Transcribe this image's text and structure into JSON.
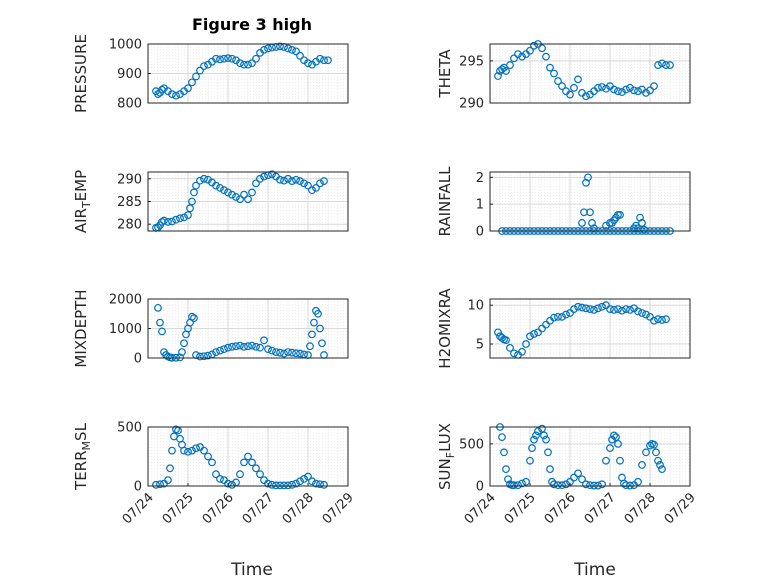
{
  "figure": {
    "title": "Figure 3 high",
    "marker_color": "#0072BD",
    "grid_color": "#d9d9d9",
    "axis_color": "#262626",
    "xlabel": "Time"
  },
  "chart_data": [
    {
      "type": "scatter",
      "ylabel": "PRESSURE",
      "xlim": [
        0,
        5
      ],
      "ylim": [
        800,
        1000
      ],
      "yticks": [
        800,
        900,
        1000
      ],
      "xticks": [],
      "xticklabels": [],
      "grid": true,
      "series": [
        {
          "x": [
            0.2,
            0.25,
            0.3,
            0.35,
            0.4,
            0.5,
            0.6,
            0.7,
            0.8,
            0.9,
            1.0,
            1.1,
            1.2,
            1.3,
            1.4,
            1.5,
            1.6,
            1.7,
            1.8,
            1.9,
            2.0,
            2.1,
            2.2,
            2.3,
            2.4,
            2.5,
            2.6,
            2.7,
            2.8,
            2.9,
            3.0,
            3.1,
            3.2,
            3.3,
            3.4,
            3.5,
            3.6,
            3.7,
            3.8,
            3.9,
            4.0,
            4.1,
            4.2,
            4.3,
            4.4,
            4.5
          ],
          "y": [
            840,
            830,
            835,
            845,
            850,
            840,
            830,
            825,
            830,
            840,
            850,
            870,
            890,
            910,
            925,
            930,
            940,
            950,
            948,
            950,
            952,
            950,
            945,
            935,
            930,
            930,
            935,
            950,
            970,
            980,
            985,
            988,
            990,
            992,
            990,
            985,
            980,
            975,
            960,
            945,
            935,
            930,
            940,
            950,
            945,
            945
          ]
        }
      ]
    },
    {
      "type": "scatter",
      "ylabel": "THETA",
      "xlim": [
        0,
        5
      ],
      "ylim": [
        290,
        297
      ],
      "yticks": [
        290,
        295
      ],
      "xticks": [],
      "xticklabels": [],
      "grid": true,
      "series": [
        {
          "x": [
            0.2,
            0.25,
            0.3,
            0.35,
            0.4,
            0.5,
            0.6,
            0.7,
            0.8,
            0.9,
            1.0,
            1.1,
            1.2,
            1.3,
            1.4,
            1.5,
            1.6,
            1.7,
            1.8,
            1.9,
            2.0,
            2.1,
            2.2,
            2.3,
            2.4,
            2.5,
            2.6,
            2.7,
            2.8,
            2.9,
            3.0,
            3.1,
            3.2,
            3.3,
            3.4,
            3.5,
            3.6,
            3.7,
            3.8,
            3.9,
            4.0,
            4.1,
            4.2,
            4.3,
            4.4,
            4.5
          ],
          "y": [
            293.2,
            293.8,
            294.0,
            294.2,
            293.8,
            294.5,
            295.3,
            295.8,
            295.5,
            295.8,
            296.2,
            296.8,
            297.0,
            296.5,
            295.5,
            294.2,
            293.5,
            292.6,
            292.0,
            291.4,
            291.0,
            291.8,
            292.8,
            291.2,
            290.8,
            291.0,
            291.4,
            291.8,
            291.9,
            291.7,
            292.0,
            291.6,
            291.4,
            291.3,
            291.6,
            291.8,
            291.5,
            291.4,
            291.6,
            291.2,
            291.5,
            292.0,
            294.5,
            294.7,
            294.5,
            294.5
          ]
        }
      ]
    },
    {
      "type": "scatter",
      "ylabel": "AIR_TEMP",
      "xlim": [
        0,
        5
      ],
      "ylim": [
        278.5,
        291.5
      ],
      "yticks": [
        280,
        285,
        290
      ],
      "xticks": [],
      "xticklabels": [],
      "grid": true,
      "series": [
        {
          "x": [
            0.2,
            0.25,
            0.3,
            0.35,
            0.4,
            0.5,
            0.6,
            0.7,
            0.8,
            0.9,
            1.0,
            1.05,
            1.1,
            1.15,
            1.2,
            1.3,
            1.4,
            1.5,
            1.6,
            1.7,
            1.8,
            1.9,
            2.0,
            2.1,
            2.2,
            2.3,
            2.4,
            2.5,
            2.6,
            2.7,
            2.8,
            2.9,
            3.0,
            3.1,
            3.2,
            3.3,
            3.4,
            3.5,
            3.6,
            3.7,
            3.8,
            3.9,
            4.0,
            4.1,
            4.2,
            4.3,
            4.4
          ],
          "y": [
            279.2,
            279.3,
            279.8,
            280.5,
            280.8,
            280.5,
            280.6,
            281.0,
            281.3,
            281.5,
            282.0,
            283.5,
            285.0,
            287.0,
            288.5,
            289.6,
            290.0,
            289.8,
            289.2,
            288.5,
            288.0,
            287.5,
            287.0,
            286.5,
            286.0,
            285.5,
            286.5,
            285.5,
            287.0,
            289.0,
            290.0,
            290.5,
            290.8,
            291.0,
            290.5,
            289.8,
            289.6,
            290.0,
            289.5,
            289.8,
            289.5,
            289.0,
            288.5,
            287.5,
            288.0,
            289.0,
            289.5
          ]
        }
      ]
    },
    {
      "type": "scatter",
      "ylabel": "RAINFALL",
      "xlim": [
        0,
        5
      ],
      "ylim": [
        0,
        2.2
      ],
      "yticks": [
        0,
        1,
        2
      ],
      "xticks": [],
      "xticklabels": [],
      "grid": true,
      "series": [
        {
          "x": [
            0.3,
            0.4,
            0.5,
            0.6,
            0.7,
            0.8,
            0.9,
            1.0,
            1.1,
            1.2,
            1.3,
            1.4,
            1.5,
            1.6,
            1.7,
            1.8,
            1.9,
            2.0,
            2.1,
            2.2,
            2.3,
            2.4,
            2.5,
            2.6,
            2.7,
            2.8,
            2.9,
            3.0,
            3.1,
            3.2,
            3.3,
            3.4,
            3.5,
            3.6,
            3.7,
            3.8,
            3.9,
            4.0,
            4.1,
            4.2,
            4.3,
            4.4,
            4.5,
            2.3,
            2.35,
            2.4,
            2.45,
            2.5,
            2.55,
            2.6,
            2.9,
            3.0,
            3.05,
            3.1,
            3.15,
            3.2,
            3.25,
            3.6,
            3.65,
            3.7,
            3.75,
            3.8,
            3.85
          ],
          "y": [
            0,
            0,
            0,
            0,
            0,
            0,
            0,
            0,
            0,
            0,
            0,
            0,
            0,
            0,
            0,
            0,
            0,
            0,
            0,
            0,
            0,
            0,
            0,
            0,
            0,
            0,
            0,
            0,
            0,
            0,
            0,
            0,
            0,
            0,
            0,
            0,
            0,
            0,
            0,
            0,
            0,
            0,
            0,
            0.3,
            0.7,
            1.8,
            2.0,
            0.7,
            0.3,
            0.1,
            0.2,
            0.3,
            0.3,
            0.4,
            0.5,
            0.6,
            0.6,
            0.1,
            0.2,
            0.1,
            0.5,
            0.3,
            0.05
          ]
        }
      ]
    },
    {
      "type": "scatter",
      "ylabel": "MIXDEPTH",
      "xlim": [
        0,
        5
      ],
      "ylim": [
        0,
        2000
      ],
      "yticks": [
        0,
        1000,
        2000
      ],
      "xticks": [],
      "xticklabels": [],
      "grid": true,
      "series": [
        {
          "x": [
            0.25,
            0.3,
            0.35,
            0.4,
            0.45,
            0.5,
            0.55,
            0.6,
            0.7,
            0.8,
            0.85,
            0.9,
            0.95,
            1.0,
            1.05,
            1.1,
            1.15,
            1.2,
            1.3,
            1.4,
            1.5,
            1.6,
            1.7,
            1.8,
            1.9,
            2.0,
            2.1,
            2.2,
            2.3,
            2.4,
            2.5,
            2.6,
            2.7,
            2.8,
            2.9,
            3.0,
            3.1,
            3.2,
            3.3,
            3.4,
            3.5,
            3.6,
            3.7,
            3.8,
            3.9,
            4.0,
            4.05,
            4.1,
            4.15,
            4.2,
            4.25,
            4.3,
            4.35,
            4.4
          ],
          "y": [
            1700,
            1200,
            900,
            200,
            100,
            50,
            20,
            10,
            10,
            20,
            200,
            500,
            800,
            1000,
            1200,
            1400,
            1350,
            100,
            50,
            60,
            80,
            120,
            200,
            250,
            300,
            350,
            380,
            400,
            420,
            380,
            400,
            420,
            380,
            350,
            600,
            300,
            250,
            200,
            180,
            150,
            200,
            180,
            160,
            150,
            120,
            100,
            400,
            800,
            1200,
            1600,
            1500,
            1000,
            500,
            100
          ]
        }
      ]
    },
    {
      "type": "scatter",
      "ylabel": "H2OMIXRA",
      "xlim": [
        0,
        5
      ],
      "ylim": [
        3.2,
        10.8
      ],
      "yticks": [
        5,
        10
      ],
      "xticks": [],
      "xticklabels": [],
      "grid": true,
      "series": [
        {
          "x": [
            0.2,
            0.25,
            0.3,
            0.35,
            0.4,
            0.5,
            0.6,
            0.7,
            0.8,
            0.9,
            1.0,
            1.1,
            1.2,
            1.3,
            1.4,
            1.5,
            1.6,
            1.7,
            1.8,
            1.9,
            2.0,
            2.1,
            2.2,
            2.3,
            2.4,
            2.5,
            2.6,
            2.7,
            2.8,
            2.9,
            3.0,
            3.1,
            3.2,
            3.3,
            3.4,
            3.5,
            3.6,
            3.7,
            3.8,
            3.9,
            4.0,
            4.1,
            4.2,
            4.3,
            4.4
          ],
          "y": [
            6.5,
            6.0,
            5.8,
            5.6,
            5.5,
            4.5,
            3.8,
            3.6,
            4.0,
            5.0,
            6.0,
            6.3,
            6.5,
            7.0,
            7.5,
            8.0,
            8.4,
            8.5,
            8.5,
            8.8,
            9.0,
            9.5,
            9.8,
            9.7,
            9.6,
            9.5,
            9.4,
            9.6,
            9.8,
            10.0,
            9.5,
            9.4,
            9.5,
            9.3,
            9.5,
            9.4,
            9.6,
            9.2,
            9.0,
            8.8,
            8.5,
            8.0,
            8.2,
            8.1,
            8.2
          ]
        }
      ]
    },
    {
      "type": "scatter",
      "ylabel": "TERR_MSL",
      "xlim": [
        0,
        5
      ],
      "ylim": [
        0,
        500
      ],
      "yticks": [
        0,
        500
      ],
      "xticks": [
        0,
        1,
        2,
        3,
        4,
        5
      ],
      "xticklabels": [
        "07/24",
        "07/25",
        "07/26",
        "07/27",
        "07/28",
        "07/29"
      ],
      "grid": true,
      "series": [
        {
          "x": [
            0.2,
            0.3,
            0.4,
            0.5,
            0.55,
            0.6,
            0.65,
            0.7,
            0.75,
            0.8,
            0.85,
            0.9,
            1.0,
            1.1,
            1.2,
            1.3,
            1.4,
            1.5,
            1.6,
            1.7,
            1.8,
            1.9,
            2.0,
            2.1,
            2.2,
            2.3,
            2.4,
            2.5,
            2.6,
            2.7,
            2.8,
            2.9,
            3.0,
            3.1,
            3.2,
            3.3,
            3.4,
            3.5,
            3.6,
            3.7,
            3.8,
            3.9,
            4.0,
            4.1,
            4.2,
            4.3,
            4.4
          ],
          "y": [
            10,
            15,
            20,
            50,
            150,
            300,
            420,
            480,
            470,
            400,
            350,
            300,
            290,
            300,
            320,
            330,
            300,
            250,
            200,
            100,
            60,
            50,
            20,
            10,
            30,
            100,
            200,
            250,
            200,
            150,
            100,
            50,
            20,
            10,
            5,
            5,
            5,
            5,
            10,
            20,
            40,
            60,
            80,
            40,
            20,
            15,
            10
          ]
        }
      ]
    },
    {
      "type": "scatter",
      "ylabel": "SUN_FLUX",
      "xlim": [
        0,
        5
      ],
      "ylim": [
        0,
        700
      ],
      "yticks": [
        0,
        500
      ],
      "xticks": [
        0,
        1,
        2,
        3,
        4,
        5
      ],
      "xticklabels": [
        "07/24",
        "07/25",
        "07/26",
        "07/27",
        "07/28",
        "07/29"
      ],
      "grid": true,
      "series": [
        {
          "x": [
            0.25,
            0.3,
            0.35,
            0.4,
            0.45,
            0.5,
            0.55,
            0.6,
            0.7,
            0.8,
            0.9,
            1.0,
            1.05,
            1.1,
            1.15,
            1.2,
            1.3,
            1.35,
            1.4,
            1.45,
            1.5,
            1.55,
            1.6,
            1.7,
            1.8,
            1.9,
            2.0,
            2.1,
            2.2,
            2.3,
            2.4,
            2.5,
            2.6,
            2.7,
            2.8,
            2.9,
            3.0,
            3.05,
            3.1,
            3.15,
            3.2,
            3.25,
            3.3,
            3.35,
            3.4,
            3.5,
            3.6,
            3.7,
            3.8,
            3.9,
            4.0,
            4.05,
            4.1,
            4.15,
            4.2,
            4.25,
            4.3
          ],
          "y": [
            700,
            580,
            400,
            200,
            80,
            20,
            10,
            10,
            10,
            30,
            50,
            300,
            450,
            550,
            600,
            650,
            680,
            600,
            550,
            400,
            200,
            50,
            20,
            10,
            10,
            20,
            50,
            100,
            150,
            80,
            20,
            10,
            5,
            5,
            20,
            300,
            450,
            550,
            600,
            580,
            500,
            300,
            100,
            30,
            10,
            5,
            10,
            50,
            250,
            400,
            480,
            500,
            490,
            400,
            300,
            250,
            200
          ]
        }
      ]
    }
  ]
}
